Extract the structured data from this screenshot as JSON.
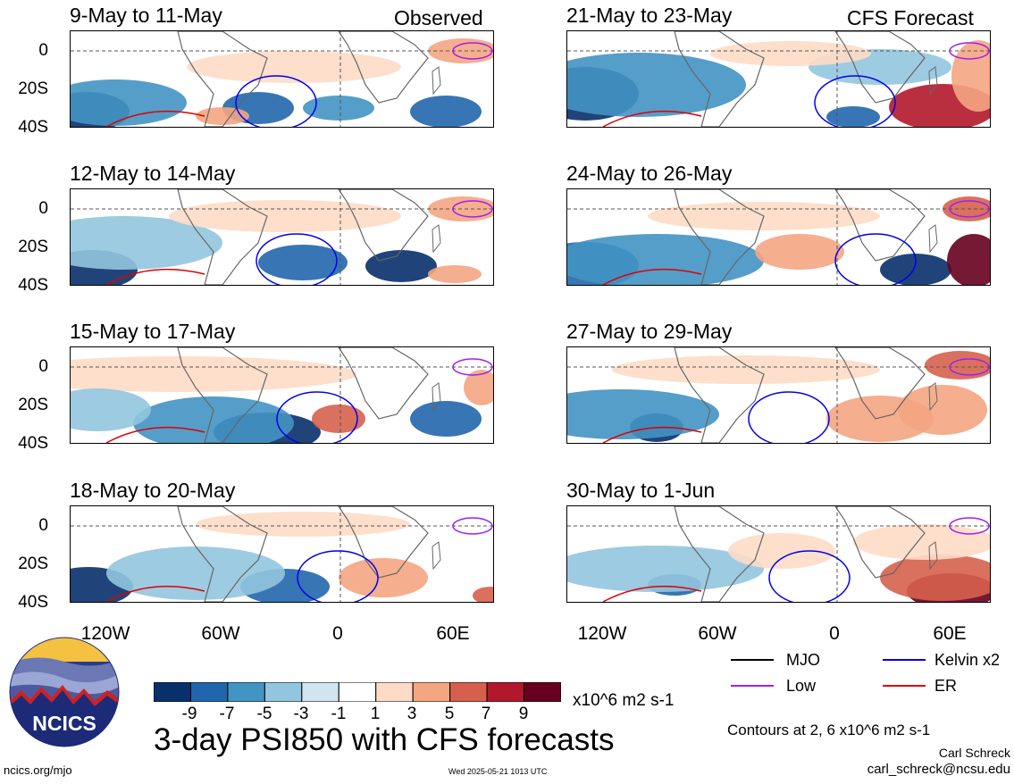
{
  "panels": [
    {
      "title": "9-May to 11-May",
      "label": "Observed"
    },
    {
      "title": "12-May to 14-May",
      "label": ""
    },
    {
      "title": "15-May to 17-May",
      "label": ""
    },
    {
      "title": "18-May to 20-May",
      "label": ""
    },
    {
      "title": "21-May to 23-May",
      "label": "CFS Forecast"
    },
    {
      "title": "24-May to 26-May",
      "label": ""
    },
    {
      "title": "27-May to 29-May",
      "label": ""
    },
    {
      "title": "30-May to 1-Jun",
      "label": ""
    }
  ],
  "y_ticks": [
    "0",
    "20S",
    "40S"
  ],
  "x_ticks": [
    "120W",
    "60W",
    "0",
    "60E"
  ],
  "colorbar": {
    "labels": [
      "-9",
      "-7",
      "-5",
      "-3",
      "-1",
      "1",
      "3",
      "5",
      "7",
      "9"
    ],
    "units": "x10^6 m2 s-1",
    "colors": [
      "#08306b",
      "#2166ac",
      "#4393c3",
      "#92c5de",
      "#d1e5f0",
      "#ffffff",
      "#fddbc7",
      "#f4a582",
      "#d6604d",
      "#b2182b",
      "#67001f"
    ]
  },
  "main_title": "3-day PSI850 with CFS forecasts",
  "legend": [
    {
      "label": "MJO",
      "color": "#000000"
    },
    {
      "label": "Kelvin x2",
      "color": "#0000ee"
    },
    {
      "label": "Low",
      "color": "#a020f0"
    },
    {
      "label": "ER",
      "color": "#dd0000"
    }
  ],
  "contour_note": "Contours at 2, 6 x10^6 m2 s-1",
  "author": "Carl Schreck",
  "email": "carl_schreck@ncsu.edu",
  "site": "ncics.org/mjo",
  "timestamp": "Wed 2025-05-21 1013 UTC",
  "logo_text": "NCICS"
}
